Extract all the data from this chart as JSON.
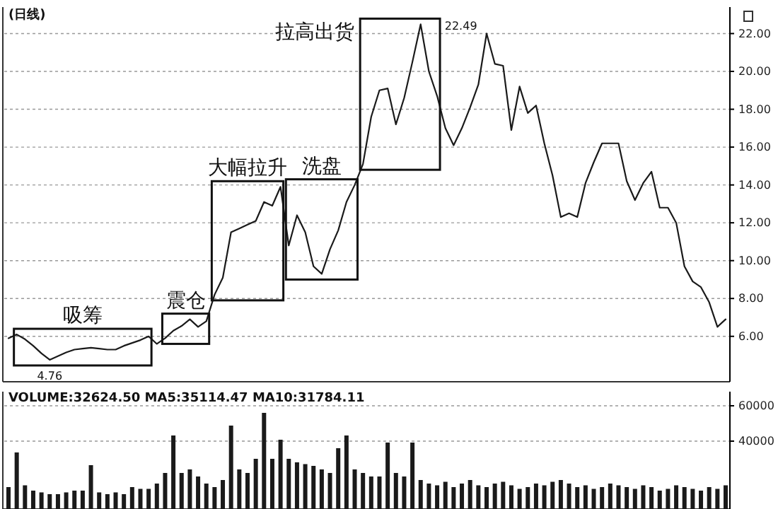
{
  "chart_data": [
    {
      "type": "line",
      "title": "(日线)",
      "color": "#1a1a1a",
      "line_style": "solid",
      "grid": "y",
      "tick_labels": "y",
      "ylim": [
        3.6,
        23.4
      ],
      "yticks": [
        {
          "value": 6,
          "label": "6.00"
        },
        {
          "value": 8,
          "label": "8.00"
        },
        {
          "value": 10,
          "label": "10.00"
        },
        {
          "value": 12,
          "label": "12.00"
        },
        {
          "value": 14,
          "label": "14.00"
        },
        {
          "value": 16,
          "label": "16.00"
        },
        {
          "value": 18,
          "label": "18.00"
        },
        {
          "value": 20,
          "label": "20.00"
        },
        {
          "value": 22,
          "label": "22.00"
        }
      ],
      "categories": [
        null,
        null,
        null,
        null,
        null,
        null,
        null,
        null,
        null,
        null,
        null,
        null,
        null,
        null,
        null,
        null,
        null,
        null,
        null,
        null,
        null,
        null,
        null,
        null,
        null,
        null,
        null,
        null,
        null,
        null,
        null,
        null,
        null,
        null,
        null,
        null,
        null,
        null,
        null,
        null,
        null,
        null,
        null,
        null,
        null,
        null,
        null,
        null,
        null,
        null,
        null,
        null,
        null,
        null,
        null,
        null,
        null,
        null,
        null,
        null,
        null,
        null,
        null,
        null,
        null,
        null,
        null,
        null,
        null,
        null,
        null,
        null,
        null,
        null,
        null,
        null,
        null,
        null,
        null,
        null,
        null,
        null,
        null,
        null,
        null,
        null,
        null,
        null
      ],
      "values": [
        5.9,
        6.1,
        5.85,
        5.5,
        5.1,
        4.76,
        4.95,
        5.15,
        5.3,
        5.35,
        5.4,
        5.35,
        5.3,
        5.3,
        5.5,
        5.65,
        5.8,
        6.0,
        5.6,
        5.9,
        6.3,
        6.55,
        6.9,
        6.5,
        6.8,
        8.2,
        9.1,
        11.5,
        11.7,
        11.9,
        12.1,
        13.1,
        12.9,
        13.9,
        10.8,
        12.4,
        11.5,
        9.7,
        9.3,
        10.6,
        11.6,
        13.1,
        14.0,
        15.1,
        17.6,
        19.0,
        19.1,
        17.2,
        18.6,
        20.5,
        22.49,
        20.0,
        18.7,
        17.0,
        16.1,
        17.0,
        18.1,
        19.3,
        22.0,
        20.4,
        20.3,
        16.9,
        19.2,
        17.8,
        18.2,
        16.2,
        14.5,
        12.3,
        12.5,
        12.3,
        14.1,
        15.2,
        16.2,
        16.2,
        16.2,
        14.2,
        13.2,
        14.1,
        14.7,
        12.8,
        12.8,
        12.0,
        9.7,
        8.9,
        8.6,
        7.8,
        6.5,
        6.9
      ],
      "annotations": [
        "吸筹",
        "震仓",
        "大幅拉升",
        "洗盘",
        "拉高出货",
        "22.49",
        "4.76"
      ]
    },
    {
      "type": "bar",
      "title": "VOLUME:32624.50 MA5:35114.47 MA10:31784.11",
      "color": "#1a1a1a",
      "grid": "y",
      "tick_labels": "y",
      "ylim": [
        1600,
        68000
      ],
      "yticks": [
        60000,
        40000
      ],
      "categories": [
        null,
        null,
        null,
        null,
        null,
        null,
        null,
        null,
        null,
        null,
        null,
        null,
        null,
        null,
        null,
        null,
        null,
        null,
        null,
        null,
        null,
        null,
        null,
        null,
        null,
        null,
        null,
        null,
        null,
        null,
        null,
        null,
        null,
        null,
        null,
        null,
        null,
        null,
        null,
        null,
        null,
        null,
        null,
        null,
        null,
        null,
        null,
        null,
        null,
        null,
        null,
        null,
        null,
        null,
        null,
        null,
        null,
        null,
        null,
        null,
        null,
        null,
        null,
        null,
        null,
        null,
        null,
        null,
        null,
        null,
        null,
        null,
        null,
        null,
        null,
        null,
        null,
        null,
        null,
        null,
        null,
        null,
        null,
        null,
        null,
        null,
        null,
        null
      ],
      "values": [
        14000,
        33600,
        15000,
        12000,
        11000,
        10000,
        10000,
        11000,
        12000,
        12000,
        26400,
        11000,
        10000,
        11000,
        10000,
        14000,
        13000,
        13000,
        16000,
        22000,
        43200,
        22000,
        24000,
        20000,
        16000,
        14000,
        18000,
        48800,
        24000,
        22000,
        30000,
        56000,
        30000,
        40800,
        30000,
        28000,
        27000,
        26000,
        24000,
        22000,
        36000,
        43200,
        24000,
        22000,
        20000,
        20000,
        39200,
        22000,
        20000,
        39200,
        18000,
        16000,
        15000,
        17000,
        14000,
        16000,
        18000,
        15000,
        14000,
        16000,
        17000,
        15000,
        13000,
        14000,
        16000,
        15000,
        17000,
        18000,
        16000,
        14000,
        15000,
        13000,
        14000,
        16000,
        15000,
        14000,
        13000,
        15000,
        14000,
        12000,
        13000,
        15000,
        14000,
        13000,
        12000,
        14000,
        13000,
        15000
      ]
    }
  ]
}
